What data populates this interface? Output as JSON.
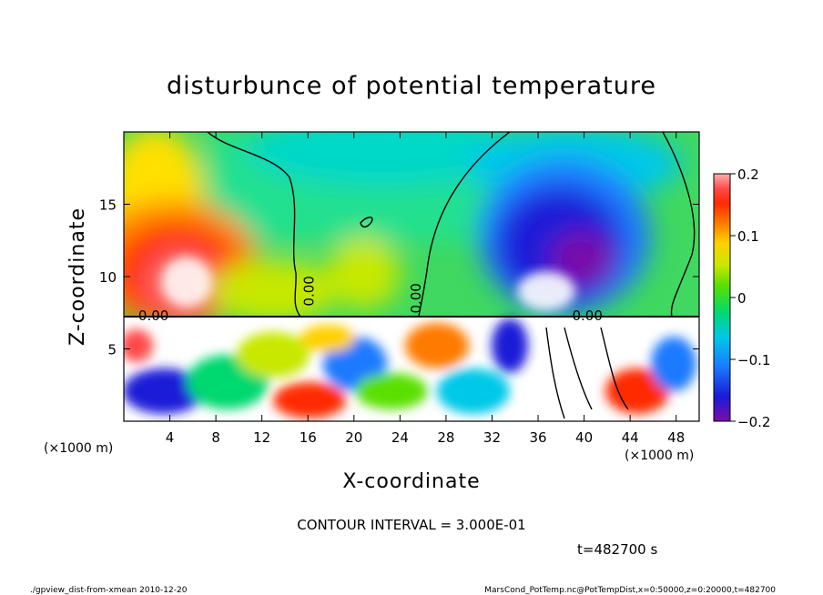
{
  "chart_data": {
    "type": "heatmap",
    "title": "disturbunce of potential temperature",
    "xlabel": "X-coordinate",
    "ylabel": "Z-coordinate",
    "x_unit": "(×1000 m)",
    "y_unit": "(×1000 m)",
    "xlim": [
      0,
      50
    ],
    "ylim": [
      0,
      20
    ],
    "x_ticks": [
      4,
      8,
      12,
      16,
      20,
      24,
      28,
      32,
      36,
      40,
      44,
      48
    ],
    "y_ticks": [
      5,
      10,
      15
    ],
    "colorbar": {
      "ticks": [
        {
          "label": "0.2",
          "value": 0.2
        },
        {
          "label": "0.1",
          "value": 0.1
        },
        {
          "label": "0",
          "value": 0.0
        },
        {
          "label": "−0.1",
          "value": -0.1
        },
        {
          "label": "−0.2",
          "value": -0.2
        }
      ],
      "range": [
        -0.2,
        0.2
      ]
    },
    "contour_labels": [
      {
        "text": "0.00",
        "x": 1.0,
        "z": 7.3
      },
      {
        "text": "0.00",
        "x": 16.5,
        "z": 9.0
      },
      {
        "text": "0.00",
        "x": 25.8,
        "z": 8.5
      },
      {
        "text": "0.00",
        "x": 38.7,
        "z": 7.3
      }
    ],
    "contour_interval_text": "CONTOUR INTERVAL = 3.000E-01",
    "time_text": "t=482700 s"
  },
  "footer": {
    "left": "./gpview_dist-from-xmean  2010-12-20",
    "right": "MarsCond_PotTemp.nc@PotTempDist,x=0:50000,z=0:20000,t=482700"
  }
}
